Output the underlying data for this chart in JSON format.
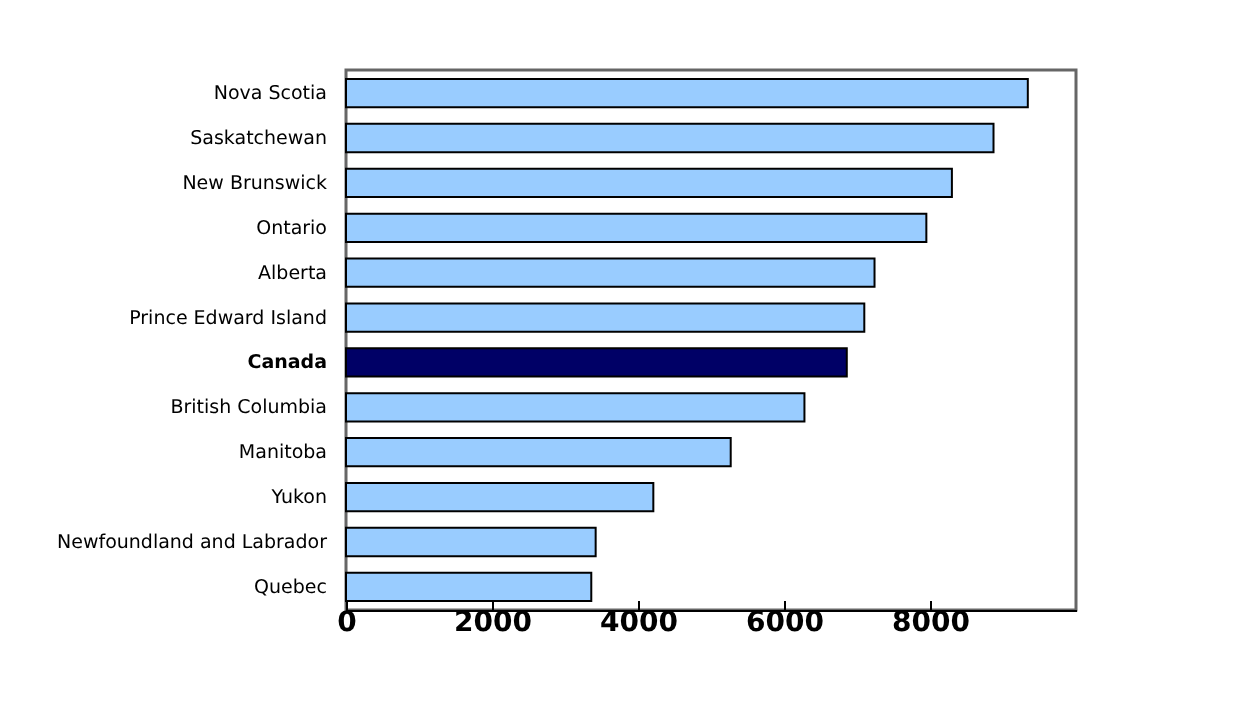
{
  "chart_data": {
    "type": "bar",
    "orientation": "horizontal",
    "categories": [
      "Nova Scotia",
      "Saskatchewan",
      "New Brunswick",
      "Ontario",
      "Alberta",
      "Prince Edward Island",
      "Canada",
      "British Columbia",
      "Manitoba",
      "Yukon",
      "Newfoundland and Labrador",
      "Quebec"
    ],
    "values": [
      9340,
      8870,
      8300,
      7950,
      7240,
      7100,
      6860,
      6280,
      5270,
      4210,
      3420,
      3360
    ],
    "colors": [
      "#99ccff",
      "#99ccff",
      "#99ccff",
      "#99ccff",
      "#99ccff",
      "#99ccff",
      "#000066",
      "#99ccff",
      "#99ccff",
      "#99ccff",
      "#99ccff",
      "#99ccff"
    ],
    "xlim": [
      0,
      10000
    ],
    "xticks": [
      0,
      2000,
      4000,
      6000,
      8000
    ],
    "grid": false
  }
}
